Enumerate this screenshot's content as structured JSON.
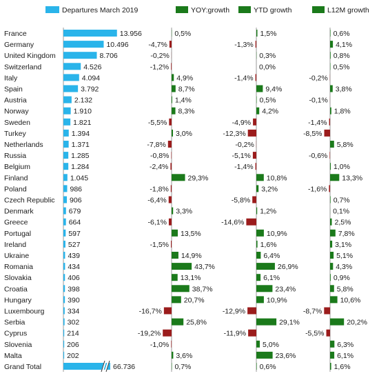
{
  "chart_data": {
    "type": "bar",
    "legend": {
      "placement": "top",
      "entries": [
        {
          "label": "Departures March 2019",
          "color": "#2ab4ea"
        },
        {
          "label": "YOY:growth",
          "color": "#1b7a1b"
        },
        {
          "label": "YTD growth",
          "color": "#1b7a1b"
        },
        {
          "label": "L12M growth",
          "color": "#1b7a1b"
        }
      ]
    },
    "positive_color": "#1b7a1b",
    "negative_color": "#9b1c1c",
    "grid": false,
    "categories": [
      "France",
      "Germany",
      "United Kingdom",
      "Switzerland",
      "Italy",
      "Spain",
      "Austria",
      "Norway",
      "Sweden",
      "Turkey",
      "Netherlands",
      "Russia",
      "Belgium",
      "Finland",
      "Poland",
      "Czech Republic",
      "Denmark",
      "Greece",
      "Portugal",
      "Ireland",
      "Ukraine",
      "Romania",
      "Slovakia",
      "Croatia",
      "Hungary",
      "Luxembourg",
      "Serbia",
      "Cyprus",
      "Slovenia",
      "Malta",
      "Grand Total"
    ],
    "departures": {
      "values": [
        13956,
        10496,
        8706,
        4526,
        4094,
        3792,
        2132,
        1910,
        1821,
        1394,
        1371,
        1285,
        1284,
        1045,
        986,
        906,
        679,
        664,
        597,
        527,
        439,
        434,
        406,
        398,
        390,
        334,
        302,
        214,
        206,
        202,
        66736
      ],
      "labels": [
        "13.956",
        "10.496",
        "8.706",
        "4.526",
        "4.094",
        "3.792",
        "2.132",
        "1.910",
        "1.821",
        "1.394",
        "1.371",
        "1.285",
        "1.284",
        "1.045",
        "986",
        "906",
        "679",
        "664",
        "597",
        "527",
        "439",
        "434",
        "406",
        "398",
        "390",
        "334",
        "302",
        "214",
        "206",
        "202",
        "66.736"
      ],
      "broken_axis_last": true
    },
    "series": [
      {
        "name": "YOY:growth",
        "values": [
          0.5,
          -4.7,
          -0.2,
          -1.2,
          4.9,
          8.7,
          1.4,
          8.3,
          -5.5,
          3.0,
          -7.8,
          -0.8,
          -2.4,
          29.3,
          -1.8,
          -6.4,
          3.3,
          -6.1,
          13.5,
          -1.5,
          14.9,
          43.7,
          13.1,
          38.7,
          20.7,
          -16.7,
          25.8,
          -19.2,
          -1.0,
          3.6,
          0.7
        ],
        "labels": [
          "0,5%",
          "-4,7%",
          "-0,2%",
          "-1,2%",
          "4,9%",
          "8,7%",
          "1,4%",
          "8,3%",
          "-5,5%",
          "3,0%",
          "-7,8%",
          "-0,8%",
          "-2,4%",
          "29,3%",
          "-1,8%",
          "-6,4%",
          "3,3%",
          "-6,1%",
          "13,5%",
          "-1,5%",
          "14,9%",
          "43,7%",
          "13,1%",
          "38,7%",
          "20,7%",
          "-16,7%",
          "25,8%",
          "-19,2%",
          "-1,0%",
          "3,6%",
          "0,7%"
        ]
      },
      {
        "name": "YTD growth",
        "values": [
          1.5,
          -1.3,
          0.3,
          0.0,
          -1.4,
          9.4,
          0.5,
          4.2,
          -4.9,
          -12.3,
          -0.2,
          -5.1,
          -1.4,
          10.8,
          3.2,
          -5.8,
          1.2,
          -14.6,
          10.9,
          1.6,
          6.4,
          26.9,
          6.1,
          23.4,
          10.9,
          -12.9,
          29.1,
          -11.9,
          5.0,
          23.6,
          0.6
        ],
        "labels": [
          "1,5%",
          "-1,3%",
          "0,3%",
          "0,0%",
          "-1,4%",
          "9,4%",
          "0,5%",
          "4,2%",
          "-4,9%",
          "-12,3%",
          "-0,2%",
          "-5,1%",
          "-1,4%",
          "10,8%",
          "3,2%",
          "-5,8%",
          "1,2%",
          "-14,6%",
          "10,9%",
          "1,6%",
          "6,4%",
          "26,9%",
          "6,1%",
          "23,4%",
          "10,9%",
          "-12,9%",
          "29,1%",
          "-11,9%",
          "5,0%",
          "23,6%",
          "0,6%"
        ]
      },
      {
        "name": "L12M growth",
        "values": [
          0.6,
          4.1,
          0.8,
          0.5,
          -0.2,
          3.8,
          -0.1,
          1.8,
          -1.4,
          -8.5,
          5.8,
          -0.6,
          1.0,
          13.3,
          -1.6,
          0.7,
          0.1,
          2.5,
          7.8,
          3.1,
          5.1,
          4.3,
          0.9,
          5.8,
          10.6,
          -8.7,
          20.2,
          -5.5,
          6.3,
          6.1,
          1.6
        ],
        "labels": [
          "0,6%",
          "4,1%",
          "0,8%",
          "0,5%",
          "-0,2%",
          "3,8%",
          "-0,1%",
          "1,8%",
          "-1,4%",
          "-8,5%",
          "5,8%",
          "-0,6%",
          "1,0%",
          "13,3%",
          "-1,6%",
          "0,7%",
          "0,1%",
          "2,5%",
          "7,8%",
          "3,1%",
          "5,1%",
          "4,3%",
          "0,9%",
          "5,8%",
          "10,6%",
          "-8,7%",
          "20,2%",
          "-5,5%",
          "6,3%",
          "6,1%",
          "1,6%"
        ]
      }
    ]
  }
}
